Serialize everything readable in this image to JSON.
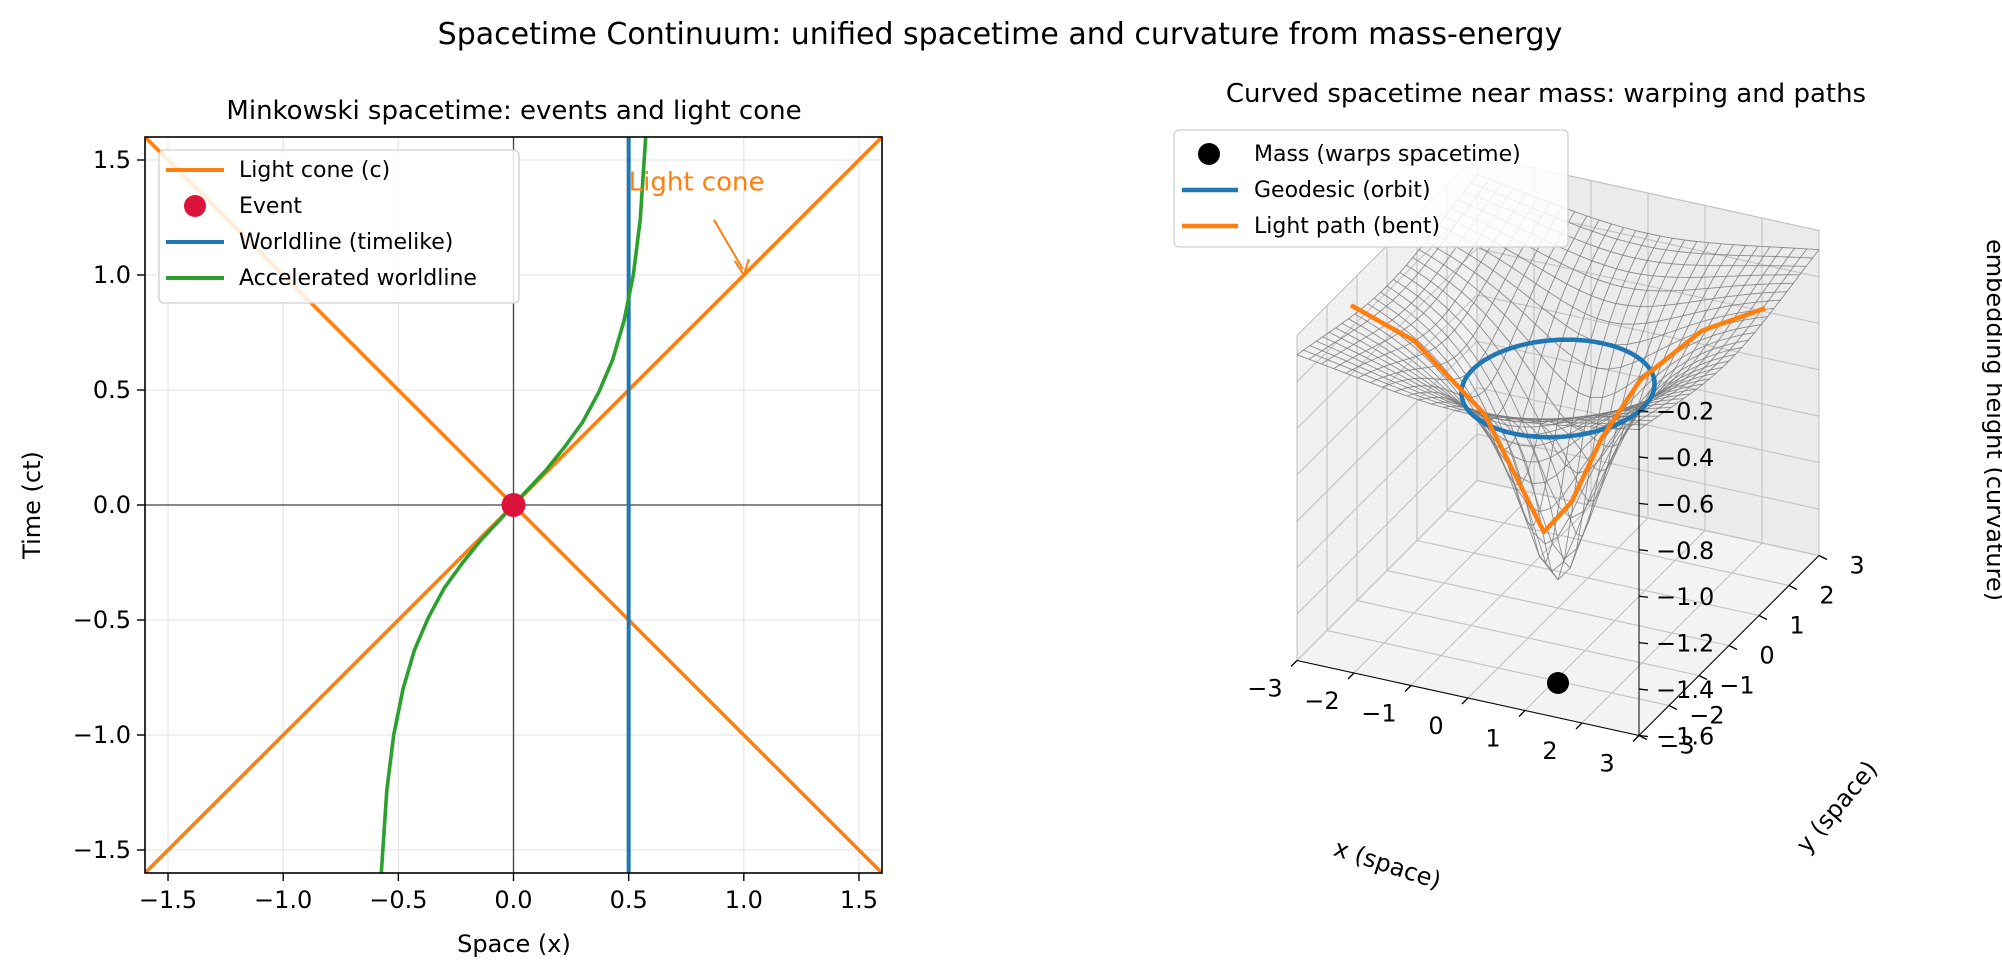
{
  "suptitle": "Spacetime Continuum: unified spacetime and curvature from mass-energy",
  "chart_data": [
    {
      "type": "line",
      "title": "Minkowski spacetime: events and light cone",
      "xlabel": "Space (x)",
      "ylabel": "Time (ct)",
      "xlim": [
        -1.6,
        1.6
      ],
      "ylim": [
        -1.6,
        1.6
      ],
      "xticks": [
        -1.5,
        -1.0,
        -0.5,
        0.0,
        0.5,
        1.0,
        1.5
      ],
      "yticks": [
        -1.5,
        -1.0,
        -0.5,
        0.0,
        0.5,
        1.0,
        1.5
      ],
      "xtick_labels": [
        "−1.5",
        "−1.0",
        "−0.5",
        "0.0",
        "0.5",
        "1.0",
        "1.5"
      ],
      "ytick_labels": [
        "−1.5",
        "−1.0",
        "−0.5",
        "0.0",
        "0.5",
        "1.0",
        "1.5"
      ],
      "grid": true,
      "legend_position": "top-left",
      "colors": {
        "light_cone": "#ff7f0e",
        "event": "#dc143c",
        "worldline": "#1f77b4",
        "accelerated": "#2ca02c"
      },
      "series": [
        {
          "name": "Light cone (c)",
          "kind": "line",
          "lines": [
            {
              "x": [
                -1.6,
                1.6
              ],
              "y": [
                -1.6,
                1.6
              ]
            },
            {
              "x": [
                -1.6,
                1.6
              ],
              "y": [
                1.6,
                -1.6
              ]
            }
          ]
        },
        {
          "name": "Event",
          "kind": "point",
          "x": [
            0.0
          ],
          "y": [
            0.0
          ]
        },
        {
          "name": "Worldline (timelike)",
          "kind": "line",
          "x": [
            0.5,
            0.5
          ],
          "y": [
            -1.6,
            1.6
          ]
        },
        {
          "name": "Accelerated worldline",
          "kind": "line",
          "x": [
            -0.574,
            -0.55,
            -0.52,
            -0.48,
            -0.43,
            -0.37,
            -0.3,
            -0.22,
            -0.14,
            -0.06,
            0.0,
            0.06,
            0.14,
            0.22,
            0.3,
            0.37,
            0.43,
            0.48,
            0.52,
            0.55,
            0.574
          ],
          "y": [
            -1.6,
            -1.24,
            -1.0,
            -0.8,
            -0.63,
            -0.49,
            -0.36,
            -0.25,
            -0.15,
            -0.065,
            0.0,
            0.065,
            0.15,
            0.25,
            0.36,
            0.49,
            0.63,
            0.8,
            1.0,
            1.24,
            1.6
          ]
        }
      ],
      "annotations": [
        {
          "text": "Light cone",
          "xy": [
            1.0,
            1.0
          ],
          "xytext": [
            0.5,
            1.35
          ]
        }
      ]
    },
    {
      "type": "surface",
      "title": "Curved spacetime near mass: warping and paths",
      "xlabel": "x (space)",
      "ylabel": "y (space)",
      "zlabel": "embedding height (curvature)",
      "xlim": [
        -3,
        3
      ],
      "ylim": [
        -3,
        3
      ],
      "zlim": [
        -1.6,
        -0.2
      ],
      "xticks": [
        -3,
        -2,
        -1,
        0,
        1,
        2,
        3
      ],
      "yticks": [
        -3,
        -2,
        -1,
        0,
        1,
        2,
        3
      ],
      "zticks": [
        -1.6,
        -1.4,
        -1.2,
        -1.0,
        -0.8,
        -0.6,
        -0.4,
        -0.2
      ],
      "xtick_labels": [
        "−3",
        "−2",
        "−1",
        "0",
        "1",
        "2",
        "3"
      ],
      "ytick_labels": [
        "−3",
        "−2",
        "−1",
        "0",
        "1",
        "2",
        "3"
      ],
      "ztick_labels": [
        "−1.6",
        "−1.4",
        "−1.2",
        "−1.0",
        "−0.8",
        "−0.6",
        "−0.4",
        "−0.2"
      ],
      "legend_position": "top-left",
      "colors": {
        "mass": "#000000",
        "geodesic": "#1f77b4",
        "light_path": "#ff7f0e",
        "mesh": "#808080"
      },
      "series": [
        {
          "name": "Mass (warps spacetime)",
          "kind": "point",
          "x": [
            0
          ],
          "y": [
            0
          ],
          "z": [
            -1.6
          ]
        },
        {
          "name": "Geodesic (orbit)",
          "kind": "circle",
          "radius": 1.5
        },
        {
          "name": "Light path (bent)",
          "kind": "line",
          "x": [
            -3,
            -2,
            -1,
            -0.3,
            0.0,
            0.4,
            1.0,
            2.0,
            3.0
          ],
          "y": [
            -1.2,
            -1.0,
            -0.55,
            0.1,
            0.45,
            0.7,
            0.85,
            1.0,
            1.2
          ]
        }
      ]
    }
  ]
}
